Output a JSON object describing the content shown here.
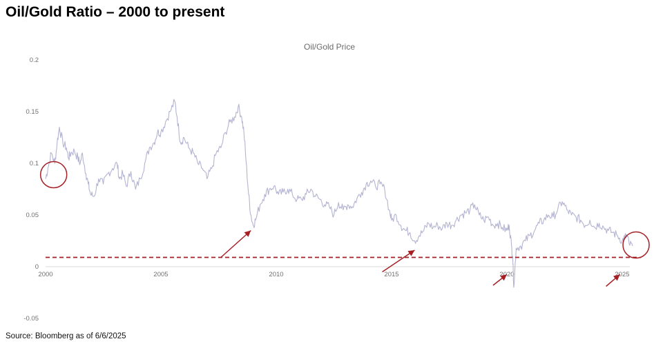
{
  "page": {
    "title": "Oil/Gold Ratio – 2000 to present",
    "source": "Source: Bloomberg as of 6/6/2025"
  },
  "chart_data": {
    "type": "line",
    "title": "Oil/Gold Price",
    "xlabel": "",
    "ylabel": "",
    "xlim": [
      2000,
      2025.6
    ],
    "ylim": [
      -0.05,
      0.2
    ],
    "x_ticks": [
      "2000",
      "2005",
      "2010",
      "2015",
      "2020",
      "2025"
    ],
    "y_ticks": [
      "-0.05",
      "0",
      "0.05",
      "0.1",
      "0.15",
      "0.2"
    ],
    "grid": false,
    "legend": "none",
    "series": [
      {
        "color": "#b3b3d2",
        "x": [
          2000.0,
          2000.1,
          2000.25,
          2000.4,
          2000.5,
          2000.6,
          2000.75,
          2000.9,
          2001.0,
          2001.1,
          2001.25,
          2001.4,
          2001.5,
          2001.6,
          2001.75,
          2001.85,
          2001.95,
          2002.1,
          2002.3,
          2002.5,
          2002.7,
          2002.9,
          2003.1,
          2003.2,
          2003.35,
          2003.5,
          2003.7,
          2003.9,
          2004.1,
          2004.3,
          2004.5,
          2004.7,
          2004.85,
          2005.0,
          2005.2,
          2005.4,
          2005.6,
          2005.7,
          2005.85,
          2006.0,
          2006.2,
          2006.4,
          2006.6,
          2006.8,
          2007.0,
          2007.2,
          2007.4,
          2007.6,
          2007.8,
          2008.0,
          2008.2,
          2008.35,
          2008.5,
          2008.6,
          2008.7,
          2008.8,
          2008.9,
          2009.0,
          2009.1,
          2009.3,
          2009.5,
          2009.7,
          2009.9,
          2010.1,
          2010.3,
          2010.5,
          2010.7,
          2010.9,
          2011.1,
          2011.3,
          2011.5,
          2011.7,
          2011.9,
          2012.1,
          2012.3,
          2012.5,
          2012.7,
          2012.9,
          2013.1,
          2013.3,
          2013.5,
          2013.7,
          2013.9,
          2014.1,
          2014.3,
          2014.5,
          2014.7,
          2014.9,
          2015.0,
          2015.2,
          2015.4,
          2015.6,
          2015.8,
          2016.0,
          2016.2,
          2016.4,
          2016.6,
          2016.8,
          2017.0,
          2017.2,
          2017.4,
          2017.6,
          2017.8,
          2018.0,
          2018.2,
          2018.4,
          2018.6,
          2018.8,
          2019.0,
          2019.2,
          2019.4,
          2019.6,
          2019.8,
          2020.0,
          2020.1,
          2020.2,
          2020.25,
          2020.3,
          2020.4,
          2020.6,
          2020.8,
          2021.0,
          2021.2,
          2021.4,
          2021.6,
          2021.8,
          2022.0,
          2022.2,
          2022.4,
          2022.6,
          2022.8,
          2023.0,
          2023.2,
          2023.4,
          2023.6,
          2023.8,
          2024.0,
          2024.2,
          2024.4,
          2024.6,
          2024.8,
          2025.0,
          2025.1,
          2025.2,
          2025.3,
          2025.45
        ],
        "values": [
          0.085,
          0.095,
          0.11,
          0.1,
          0.12,
          0.135,
          0.12,
          0.115,
          0.105,
          0.11,
          0.112,
          0.105,
          0.1,
          0.11,
          0.09,
          0.08,
          0.07,
          0.068,
          0.085,
          0.08,
          0.09,
          0.095,
          0.1,
          0.085,
          0.09,
          0.078,
          0.092,
          0.075,
          0.085,
          0.1,
          0.115,
          0.12,
          0.13,
          0.13,
          0.14,
          0.15,
          0.16,
          0.145,
          0.12,
          0.125,
          0.115,
          0.11,
          0.1,
          0.095,
          0.085,
          0.095,
          0.11,
          0.115,
          0.13,
          0.14,
          0.145,
          0.155,
          0.145,
          0.13,
          0.1,
          0.07,
          0.05,
          0.04,
          0.045,
          0.06,
          0.07,
          0.075,
          0.078,
          0.07,
          0.072,
          0.075,
          0.07,
          0.065,
          0.065,
          0.07,
          0.075,
          0.068,
          0.065,
          0.06,
          0.058,
          0.05,
          0.062,
          0.055,
          0.06,
          0.058,
          0.066,
          0.072,
          0.08,
          0.083,
          0.078,
          0.08,
          0.075,
          0.055,
          0.045,
          0.05,
          0.04,
          0.035,
          0.033,
          0.025,
          0.03,
          0.035,
          0.042,
          0.038,
          0.04,
          0.037,
          0.042,
          0.04,
          0.045,
          0.05,
          0.052,
          0.055,
          0.06,
          0.05,
          0.045,
          0.048,
          0.04,
          0.042,
          0.038,
          0.035,
          0.04,
          0.02,
          0.01,
          -0.02,
          0.018,
          0.02,
          0.025,
          0.03,
          0.035,
          0.042,
          0.045,
          0.05,
          0.048,
          0.055,
          0.063,
          0.055,
          0.05,
          0.048,
          0.045,
          0.04,
          0.045,
          0.038,
          0.042,
          0.038,
          0.035,
          0.033,
          0.03,
          0.025,
          0.028,
          0.03,
          0.022,
          0.02
        ]
      }
    ],
    "annotations": {
      "threshold_value": 0.009,
      "threshold_color": "#a51f24",
      "circles": [
        {
          "x": 2000.35,
          "y": 0.089
        },
        {
          "x": 2025.6,
          "y": 0.021
        }
      ],
      "arrows": [
        {
          "from": [
            2007.6,
            0.009
          ],
          "to": [
            2008.9,
            0.035
          ]
        },
        {
          "from": [
            2014.6,
            -0.005
          ],
          "to": [
            2016.0,
            0.016
          ]
        },
        {
          "from": [
            2019.4,
            -0.018
          ],
          "to": [
            2020.0,
            -0.0075
          ]
        },
        {
          "from": [
            2024.3,
            -0.019
          ],
          "to": [
            2024.9,
            -0.0075
          ]
        }
      ]
    }
  }
}
